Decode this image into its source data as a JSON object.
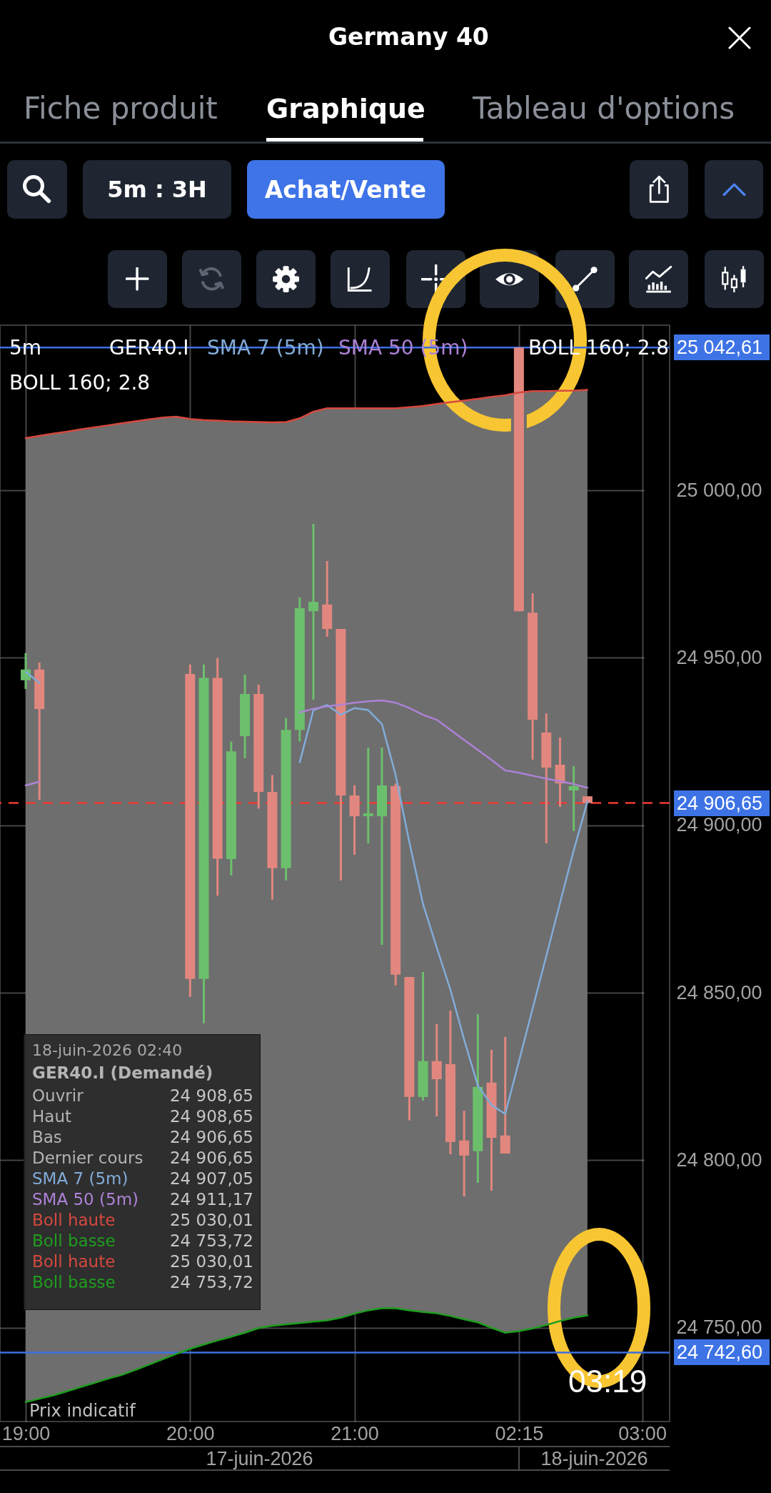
{
  "chart_data": {
    "type": "candlestick",
    "title": "Germany 40",
    "categories": [
      "19:00",
      null,
      null,
      null,
      null,
      null,
      null,
      null,
      null,
      null,
      null,
      null,
      "20:00",
      null,
      null,
      null,
      null,
      null,
      null,
      null,
      null,
      null,
      null,
      null,
      "21:00",
      null,
      null,
      null,
      null,
      null,
      null,
      null,
      null,
      null,
      null,
      null,
      "02:15",
      null,
      null,
      null,
      null,
      null,
      null,
      null,
      null,
      "03:00",
      null,
      null
    ],
    "ohlc": [
      [
        24943.3,
        24951.4,
        24940.7,
        24946.5
      ],
      [
        24946.5,
        24948.6,
        24907.6,
        24934.7
      ],
      null,
      null,
      null,
      null,
      null,
      null,
      null,
      null,
      null,
      null,
      [
        24945.2,
        24948,
        24848.8,
        24854.1
      ],
      [
        24854.1,
        24948,
        24840.9,
        24944
      ],
      [
        24944,
        24950,
        24879,
        24890
      ],
      [
        24889.9,
        24925,
        24885,
        24922.1
      ],
      [
        24926.6,
        24945,
        24920,
        24939.2
      ],
      [
        24939.2,
        24942,
        24905,
        24910
      ],
      [
        24910,
        24915,
        24877.8,
        24887.2
      ],
      [
        24887.2,
        24932,
        24883.5,
        24928.5
      ],
      [
        24928.5,
        24968,
        24925,
        24964.8
      ],
      [
        24963.9,
        24990,
        24937.5,
        24966.7
      ],
      [
        24965.9,
        24978.9,
        24956.3,
        24958.6
      ],
      [
        24958.6,
        24958.6,
        24883.5,
        24908.9
      ],
      [
        24908.9,
        24912,
        24891.2,
        24902.7
      ],
      [
        24902.7,
        24923.2,
        24894.6,
        24903.6
      ],
      [
        24902.7,
        24923.2,
        24864.3,
        24911.9
      ],
      [
        24911.7,
        24912.5,
        24852.2,
        24855.4
      ],
      [
        24854.7,
        24854.7,
        24811.9,
        24818.9
      ],
      [
        24818.9,
        24856.2,
        24817.8,
        24829.6
      ],
      [
        24829.6,
        24840.7,
        24813.1,
        24824.2
      ],
      [
        24828.7,
        24844.7,
        24801.8,
        24805.5
      ],
      [
        24805.9,
        24814.8,
        24789.2,
        24801.4
      ],
      [
        24802.7,
        24843.6,
        24793.3,
        24821.9
      ],
      [
        24823.2,
        24833,
        24790.9,
        24806.7
      ],
      [
        24807.4,
        24836.8,
        24802,
        24802
      ],
      [
        25042.61,
        25042.61,
        24963.9,
        24963.9
      ],
      [
        24963.5,
        24969.3,
        24919.6,
        24931.5
      ],
      [
        24927.7,
        24933.4,
        24894.6,
        24917.2
      ],
      [
        24918.1,
        24926.2,
        24905.5,
        24912.5
      ],
      [
        24910.4,
        24917.7,
        24898.3,
        24911.7
      ],
      [
        24908.65,
        24908.65,
        24906.65,
        24906.65
      ],
      null,
      null,
      null,
      null,
      null,
      null
    ],
    "series": [
      {
        "name": "SMA 7 (5m)",
        "type": "line",
        "color": "#82acd8",
        "values": [
          24945.8,
          24942.5,
          null,
          null,
          null,
          null,
          null,
          null,
          null,
          null,
          null,
          null,
          null,
          null,
          null,
          null,
          null,
          null,
          null,
          null,
          24918.8,
          24934.4,
          24935.9,
          24933,
          24935,
          24934.4,
          24930.2,
          24915,
          24895,
          24876.5,
          24863.5,
          24850.9,
          24836,
          24822.3,
          24816.5,
          24813.8,
          24829.5,
          24845.3,
          24861,
          24876.8,
          24892.5,
          24907.1,
          null,
          null,
          null,
          null,
          null,
          null
        ]
      },
      {
        "name": "SMA 50 (5m)",
        "type": "line",
        "color": "#ad82d6",
        "values": [
          24911.9,
          24913,
          null,
          null,
          null,
          null,
          null,
          null,
          null,
          null,
          null,
          null,
          null,
          null,
          null,
          null,
          null,
          null,
          null,
          null,
          24933.7,
          24934.8,
          24935.5,
          24936,
          24936.6,
          24937,
          24937.3,
          24936.6,
          24935,
          24933,
          24931.5,
          24928.5,
          24925.5,
          24922.5,
          24919.5,
          24916.4,
          24915.7,
          24914.8,
          24913.9,
          24913.1,
          24912.3,
          24911.2,
          null,
          null,
          null,
          null,
          null,
          null
        ]
      },
      {
        "name": "Boll haute",
        "type": "line",
        "color": "#d5483f",
        "values": [
          25015.6,
          25016.3,
          25016.9,
          25017.5,
          25018.2,
          25018.8,
          25019.4,
          25020,
          25020.6,
          25021.2,
          25021.7,
          25022,
          25021.3,
          25021,
          25020.8,
          25020.6,
          25020.5,
          25020.4,
          25020.3,
          25020.4,
          25021.5,
          25023.5,
          25024.5,
          25024.5,
          25024.5,
          25024.5,
          25024.5,
          25024.5,
          25024.8,
          25025.2,
          25025.8,
          25026.3,
          25026.8,
          25027.3,
          25027.9,
          25028.4,
          25029.2,
          25029.6,
          25029.6,
          25029.7,
          25029.8,
          25030,
          null,
          null,
          null,
          null,
          null,
          null
        ]
      },
      {
        "name": "Boll basse",
        "type": "line",
        "color": "#1e9e1e",
        "values": [
          24727.8,
          24728.8,
          24729.8,
          24731,
          24732.3,
          24733.5,
          24734.8,
          24735.9,
          24737.4,
          24739,
          24740.6,
          24742.2,
          24743.7,
          24745,
          24746.2,
          24747.3,
          24748.5,
          24749.9,
          24750.6,
          24751,
          24751.4,
          24751.8,
          24752.2,
          24753,
          24754.2,
          24755.2,
          24755.8,
          24755.8,
          24755.2,
          24754.7,
          24754.3,
          24753.5,
          24752.5,
          24751.6,
          24750,
          24748.5,
          24749,
          24749.8,
          24750.8,
          24752,
          24753,
          24753.7,
          null,
          null,
          null,
          null,
          null,
          null
        ]
      }
    ],
    "ylim": [
      24722,
      25049.3
    ],
    "yticks": [
      {
        "value": 24750,
        "label": "24 750,00"
      },
      {
        "value": 24800,
        "label": "24 800,00"
      },
      {
        "value": 24850,
        "label": "24 850,00"
      },
      {
        "value": 24900,
        "label": "24 900,00"
      },
      {
        "value": 24950,
        "label": "24 950,00"
      },
      {
        "value": 25000,
        "label": "25 000,00"
      }
    ],
    "ref_lines": [
      {
        "axis": "y",
        "value": 25042.61,
        "label": "25 042,61",
        "color": "#3d6fe0"
      },
      {
        "axis": "y",
        "value": 24906.65,
        "label": "24 906,65",
        "color": "#ef3b30",
        "line_style": "dashed"
      },
      {
        "axis": "y",
        "value": 24742.6,
        "label": "24 742,60",
        "color": "#3d6fe0"
      }
    ],
    "grid": true,
    "legend": "top right",
    "annotations": [
      "Fiche produit",
      "Graphique",
      "Tableau d'options",
      "5m : 3H",
      "Achat/Vente",
      "5m",
      "GER40.I",
      "BOLL 160; 2.8",
      "BOLL 160; 2.8",
      "18-juin-2026 02:40",
      "GER40.I (Demandé)",
      "Ouvrir",
      "24 908,65",
      "Haut",
      "24 908,65",
      "Bas",
      "24 906,65",
      "Dernier cours",
      "24 906,65",
      "24 907,05",
      "24 911,17",
      "25 030,01",
      "24 753,72",
      "25 030,01",
      "24 753,72",
      "Prix indicatif",
      "03:19",
      "17-juin-2026",
      "18-juin-2026"
    ]
  }
}
